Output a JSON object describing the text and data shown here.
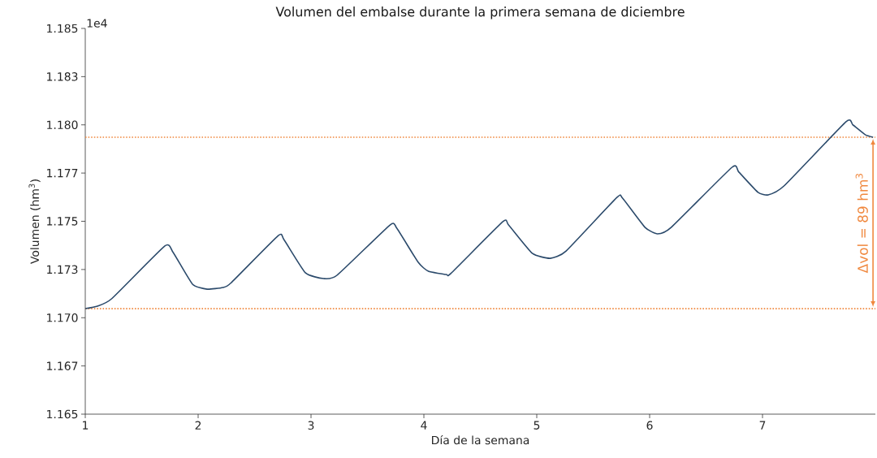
{
  "chart_data": {
    "type": "line",
    "title": "Volumen del embalse durante la primera semana de diciembre",
    "xlabel": "Día de la semana",
    "ylabel": "Volumen (hm$^{3}$)",
    "annotations": [
      "1e4",
      "Δvol = 89 hm$^{3}$"
    ],
    "x": [
      1.0,
      1.108,
      1.237,
      1.705,
      1.777,
      1.95,
      2.08,
      2.22,
      2.29,
      2.71,
      2.76,
      2.95,
      3.11,
      3.23,
      3.7,
      3.76,
      3.95,
      4.04,
      4.2,
      4.24,
      4.7,
      4.75,
      4.96,
      5.12,
      5.26,
      5.71,
      5.76,
      5.96,
      6.07,
      6.19,
      6.73,
      6.79,
      6.96,
      7.05,
      7.19,
      7.74,
      7.8,
      7.91,
      7.98
    ],
    "series": [
      {
        "color": "#2b4a6b",
        "values": [
          1.17047,
          1.1706,
          1.171,
          1.17372,
          1.1734,
          1.17174,
          1.17148,
          1.17157,
          1.1718,
          1.17426,
          1.17405,
          1.17233,
          1.17203,
          1.1722,
          1.17481,
          1.17464,
          1.17287,
          1.17241,
          1.17224,
          1.1723,
          1.17498,
          1.17481,
          1.17334,
          1.17308,
          1.17346,
          1.17624,
          1.1762,
          1.17468,
          1.17435,
          1.17468,
          1.1778,
          1.17755,
          1.1765,
          1.17637,
          1.17683,
          1.18016,
          1.18,
          1.17949,
          1.17936
        ]
      }
    ],
    "xlim": [
      1,
      8
    ],
    "ylim": [
      1.165,
      1.185
    ],
    "xticks": [
      1,
      2,
      3,
      4,
      5,
      6,
      7
    ],
    "yticks": [
      {
        "value": 1.165,
        "label": "1.165"
      },
      {
        "value": 1.1675,
        "label": "1.167"
      },
      {
        "value": 1.17,
        "label": "1.170"
      },
      {
        "value": 1.1725,
        "label": "1.173"
      },
      {
        "value": 1.175,
        "label": "1.175"
      },
      {
        "value": 1.1775,
        "label": "1.177"
      },
      {
        "value": 1.18,
        "label": "1.180"
      },
      {
        "value": 1.1825,
        "label": "1.183"
      },
      {
        "value": 1.185,
        "label": "1.185"
      }
    ],
    "ref_lines": [
      {
        "axis": "y",
        "value": 1.17936,
        "color": "#f0883e",
        "line_style": "dotted"
      },
      {
        "axis": "y",
        "value": 1.17047,
        "color": "#f0883e",
        "line_style": "dotted"
      }
    ],
    "grid": false,
    "marker": "none",
    "line_style": "solid"
  }
}
